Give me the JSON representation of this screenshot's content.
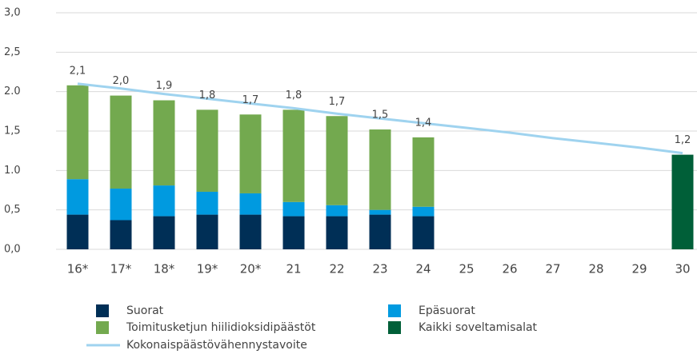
{
  "chart_data": {
    "type": "stacked-bar-line",
    "categories": [
      "16*",
      "17*",
      "18*",
      "19*",
      "20*",
      "21",
      "22",
      "23",
      "24",
      "25",
      "26",
      "27",
      "28",
      "29",
      "30"
    ],
    "series": [
      {
        "name": "Suorat",
        "color": "#002f56",
        "values": [
          0.44,
          0.37,
          0.42,
          0.44,
          0.44,
          0.42,
          0.42,
          0.44,
          0.42,
          null,
          null,
          null,
          null,
          null,
          null
        ]
      },
      {
        "name": "Epäsuorat",
        "color": "#009ae0",
        "values": [
          0.45,
          0.4,
          0.39,
          0.29,
          0.27,
          0.18,
          0.14,
          0.06,
          0.12,
          null,
          null,
          null,
          null,
          null,
          null
        ]
      },
      {
        "name": "Toimitusketjun hiilidioksidipäästöt",
        "color": "#73a94f",
        "values": [
          1.19,
          1.18,
          1.08,
          1.04,
          1.0,
          1.17,
          1.13,
          1.02,
          0.88,
          null,
          null,
          null,
          null,
          null,
          null
        ]
      },
      {
        "name": "Kaikki soveltamisalat",
        "color": "#005f38",
        "values": [
          null,
          null,
          null,
          null,
          null,
          null,
          null,
          null,
          null,
          null,
          null,
          null,
          null,
          null,
          1.2
        ]
      },
      {
        "name": "Kokonaispäästövähennystavoite",
        "color": "#9fd3ef",
        "type": "line",
        "values": [
          2.1,
          2.04,
          1.97,
          1.91,
          1.85,
          1.79,
          1.72,
          1.66,
          1.6,
          1.54,
          1.48,
          1.41,
          1.35,
          1.29,
          1.22
        ]
      }
    ],
    "totals": {
      "values": [
        2.08,
        1.95,
        1.89,
        1.77,
        1.71,
        1.77,
        1.69,
        1.52,
        1.42,
        null,
        null,
        null,
        null,
        null,
        1.2
      ],
      "value_labels": [
        "2,1",
        "2,0",
        "1,9",
        "1,8",
        "1,7",
        "1,8",
        "1,7",
        "1,5",
        "1,4",
        null,
        null,
        null,
        null,
        null,
        "1,2"
      ]
    },
    "ylim": [
      0,
      3
    ],
    "yticks": [
      {
        "value": 0,
        "label": "0,0"
      },
      {
        "value": 0.5,
        "label": "0,5"
      },
      {
        "value": 1,
        "label": "1.0"
      },
      {
        "value": 1.5,
        "label": "1,5"
      },
      {
        "value": 2,
        "label": "2.0"
      },
      {
        "value": 2.5,
        "label": "2,5"
      },
      {
        "value": 3,
        "label": "3,0"
      }
    ],
    "grid": true
  }
}
